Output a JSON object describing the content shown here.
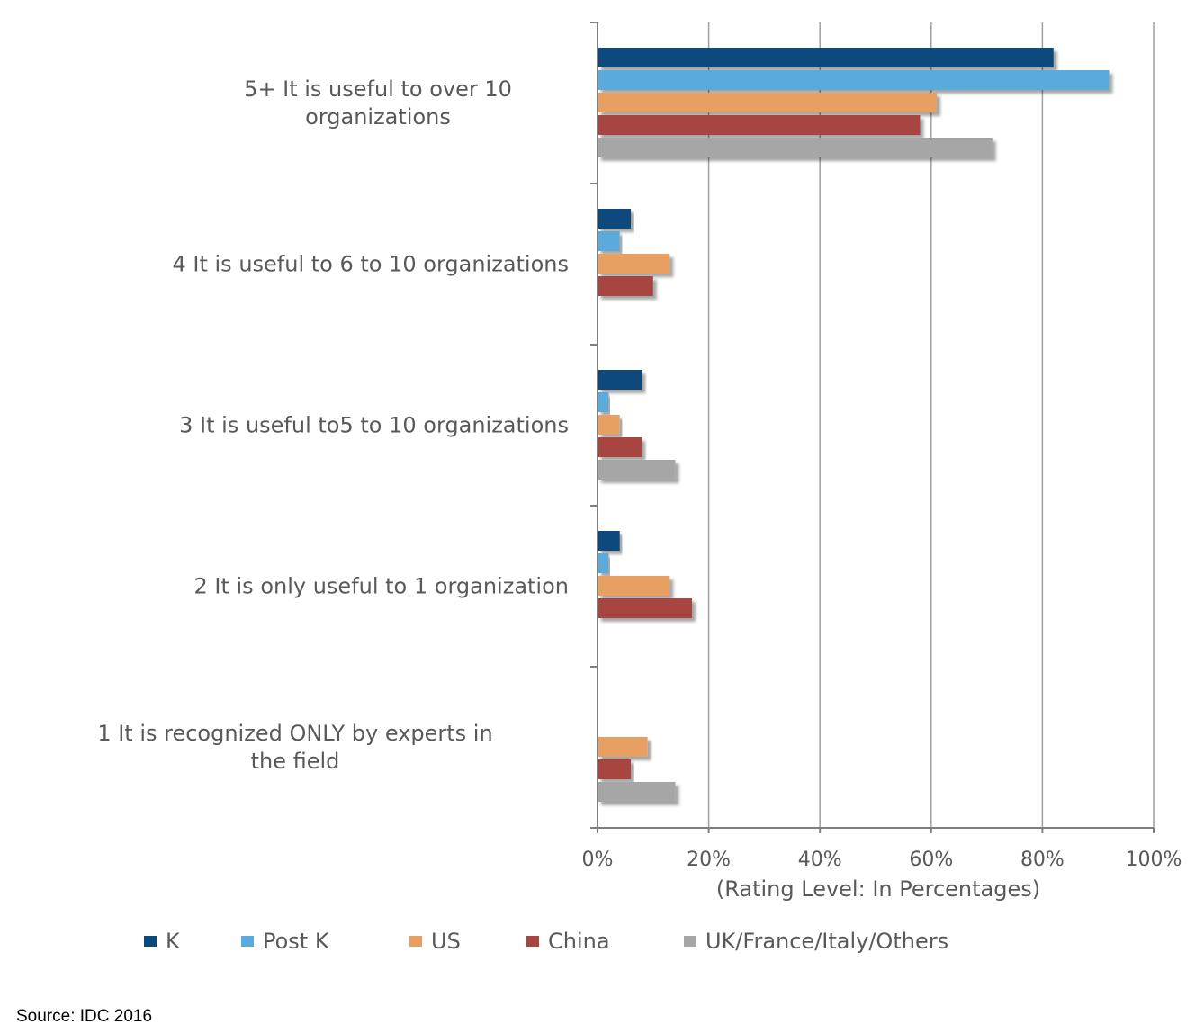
{
  "chart_data": {
    "type": "bar",
    "orientation": "horizontal",
    "categories": [
      "5+  It is useful to over 10 organizations",
      "4  It is useful to 6 to 10 organizations",
      "3  It is useful to5 to 10 organizations",
      "2  It is only useful to 1 organization",
      "1  It is recognized ONLY by experts in the field"
    ],
    "category_lines": [
      [
        "5+   It is useful to over 10",
        "organizations"
      ],
      [
        "4  It is useful to 6 to 10 organizations"
      ],
      [
        "3   It is useful to5 to 10 organizations"
      ],
      [
        "2  It is only useful to 1 organization"
      ],
      [
        "1  It is recognized ONLY by experts in",
        "the field"
      ]
    ],
    "series": [
      {
        "name": "K",
        "color": "#0b4a7d",
        "values": [
          82,
          6,
          8,
          4,
          null
        ]
      },
      {
        "name": "Post K",
        "color": "#5aaadb",
        "values": [
          92,
          4,
          2,
          2,
          null
        ]
      },
      {
        "name": "US",
        "color": "#e8a062",
        "values": [
          61,
          13,
          4,
          13,
          9
        ]
      },
      {
        "name": "China",
        "color": "#a84440",
        "values": [
          58,
          10,
          8,
          17,
          6
        ]
      },
      {
        "name": "UK/France/Italy/Others",
        "color": "#a6a6a6",
        "values": [
          71,
          null,
          14,
          null,
          14
        ]
      }
    ],
    "xlabel": "(Rating Level: In Percentages)",
    "xlim": [
      0,
      100
    ],
    "x_ticks": [
      "0%",
      "20%",
      "40%",
      "60%",
      "80%",
      "100%"
    ],
    "grid": true,
    "legend_position": "bottom"
  },
  "source": "Source: IDC 2016"
}
